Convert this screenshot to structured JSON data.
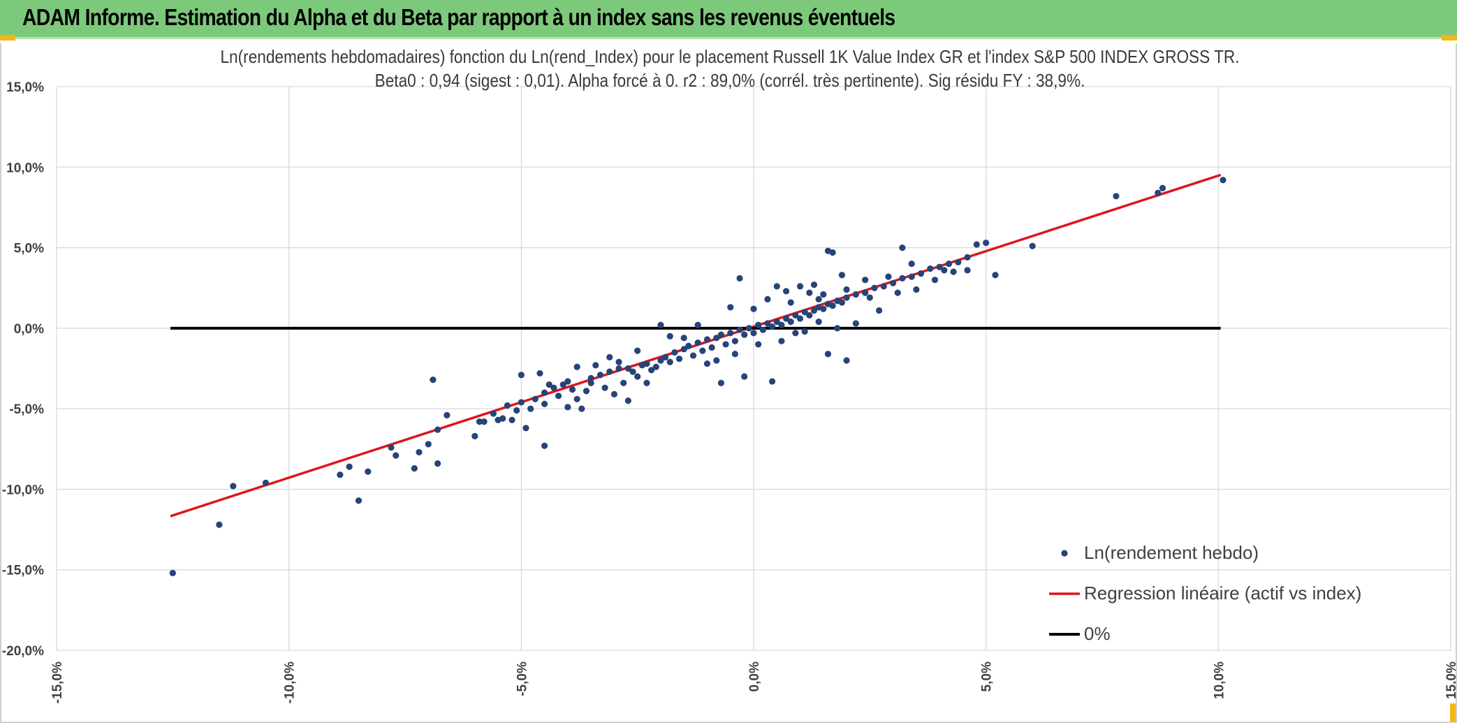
{
  "header": {
    "title": "ADAM Informe. Estimation du Alpha et du Beta par rapport à un index sans les revenus éventuels"
  },
  "colors": {
    "header_bg": "#7dc97c",
    "marker": "#f2b619",
    "points": "#264478",
    "regression": "#e0141b",
    "zero_line": "#000000",
    "grid": "#d9d9d9"
  },
  "chart_data": {
    "type": "scatter",
    "title": "Ln(rendements hebdomadaires) fonction du Ln(rend_Index) pour le placement Russell 1K Value Index GR et l'index S&P 500 INDEX GROSS TR.",
    "subtitle": "Beta0 : 0,94 (sigest : 0,01). Alpha forcé à 0. r2 : 89,0% (corrél. très pertinente). Sig résidu FY : 38,9%.",
    "xlabel": "",
    "ylabel": "",
    "xlim": [
      -0.15,
      0.15
    ],
    "ylim": [
      -0.2,
      0.15
    ],
    "x_ticks": [
      -0.15,
      -0.1,
      -0.05,
      0.0,
      0.05,
      0.1,
      0.15
    ],
    "x_tick_labels": [
      "-15,0%",
      "-10,0%",
      "-5,0%",
      "0,0%",
      "5,0%",
      "10,0%",
      "15,0%"
    ],
    "y_ticks": [
      0.15,
      0.1,
      0.05,
      0.0,
      -0.05,
      -0.1,
      -0.15,
      -0.2
    ],
    "y_tick_labels": [
      "15,0%",
      "10,0%",
      "5,0%",
      "0,0%",
      "-5,0%",
      "-10,0%",
      "-15,0%",
      "-20,0%"
    ],
    "grid": true,
    "legend_position": "bottom-right",
    "series": [
      {
        "name": "Ln(rendement hebdo)",
        "kind": "scatter",
        "color": "#264478",
        "points": [
          [
            -0.125,
            -0.152
          ],
          [
            -0.115,
            -0.122
          ],
          [
            -0.112,
            -0.098
          ],
          [
            -0.105,
            -0.096
          ],
          [
            -0.089,
            -0.091
          ],
          [
            -0.087,
            -0.086
          ],
          [
            -0.085,
            -0.107
          ],
          [
            -0.083,
            -0.089
          ],
          [
            -0.078,
            -0.074
          ],
          [
            -0.077,
            -0.079
          ],
          [
            -0.073,
            -0.087
          ],
          [
            -0.072,
            -0.077
          ],
          [
            -0.07,
            -0.072
          ],
          [
            -0.069,
            -0.032
          ],
          [
            -0.068,
            -0.063
          ],
          [
            -0.068,
            -0.084
          ],
          [
            -0.066,
            -0.054
          ],
          [
            -0.06,
            -0.067
          ],
          [
            -0.059,
            -0.058
          ],
          [
            -0.058,
            -0.058
          ],
          [
            -0.056,
            -0.053
          ],
          [
            -0.055,
            -0.057
          ],
          [
            -0.054,
            -0.056
          ],
          [
            -0.053,
            -0.048
          ],
          [
            -0.052,
            -0.057
          ],
          [
            -0.051,
            -0.051
          ],
          [
            -0.05,
            -0.029
          ],
          [
            -0.05,
            -0.046
          ],
          [
            -0.049,
            -0.062
          ],
          [
            -0.048,
            -0.05
          ],
          [
            -0.047,
            -0.044
          ],
          [
            -0.046,
            -0.028
          ],
          [
            -0.045,
            -0.047
          ],
          [
            -0.045,
            -0.04
          ],
          [
            -0.044,
            -0.035
          ],
          [
            -0.045,
            -0.073
          ],
          [
            -0.043,
            -0.037
          ],
          [
            -0.042,
            -0.042
          ],
          [
            -0.041,
            -0.035
          ],
          [
            -0.04,
            -0.033
          ],
          [
            -0.039,
            -0.038
          ],
          [
            -0.038,
            -0.024
          ],
          [
            -0.037,
            -0.05
          ],
          [
            -0.036,
            -0.039
          ],
          [
            -0.035,
            -0.031
          ],
          [
            -0.034,
            -0.023
          ],
          [
            -0.033,
            -0.029
          ],
          [
            -0.032,
            -0.037
          ],
          [
            -0.031,
            -0.027
          ],
          [
            -0.03,
            -0.041
          ],
          [
            -0.029,
            -0.025
          ],
          [
            -0.028,
            -0.034
          ],
          [
            -0.027,
            -0.025
          ],
          [
            -0.026,
            -0.027
          ],
          [
            -0.025,
            -0.03
          ],
          [
            -0.024,
            -0.023
          ],
          [
            -0.023,
            -0.022
          ],
          [
            -0.022,
            -0.026
          ],
          [
            -0.021,
            -0.024
          ],
          [
            -0.02,
            -0.02
          ],
          [
            -0.019,
            -0.018
          ],
          [
            -0.018,
            -0.021
          ],
          [
            -0.017,
            -0.015
          ],
          [
            -0.016,
            -0.019
          ],
          [
            -0.015,
            -0.013
          ],
          [
            -0.014,
            -0.011
          ],
          [
            -0.013,
            -0.017
          ],
          [
            -0.012,
            -0.009
          ],
          [
            -0.011,
            -0.014
          ],
          [
            -0.01,
            -0.007
          ],
          [
            -0.009,
            -0.012
          ],
          [
            -0.008,
            -0.006
          ],
          [
            -0.007,
            -0.004
          ],
          [
            -0.006,
            -0.01
          ],
          [
            -0.005,
            -0.003
          ],
          [
            -0.004,
            -0.008
          ],
          [
            -0.003,
            -0.001
          ],
          [
            -0.002,
            -0.004
          ],
          [
            -0.001,
            0.0
          ],
          [
            0.0,
            -0.003
          ],
          [
            0.001,
            0.002
          ],
          [
            0.002,
            -0.001
          ],
          [
            0.003,
            0.003
          ],
          [
            0.004,
            0.001
          ],
          [
            0.005,
            0.004
          ],
          [
            0.006,
            0.002
          ],
          [
            0.007,
            0.006
          ],
          [
            0.008,
            0.004
          ],
          [
            0.009,
            0.008
          ],
          [
            0.01,
            0.006
          ],
          [
            0.011,
            0.01
          ],
          [
            0.012,
            0.008
          ],
          [
            0.013,
            0.011
          ],
          [
            0.014,
            0.013
          ],
          [
            0.015,
            0.012
          ],
          [
            0.016,
            0.015
          ],
          [
            0.017,
            0.014
          ],
          [
            0.018,
            0.017
          ],
          [
            0.019,
            0.016
          ],
          [
            0.02,
            0.019
          ],
          [
            0.022,
            0.021
          ],
          [
            0.024,
            0.022
          ],
          [
            0.026,
            0.025
          ],
          [
            0.028,
            0.026
          ],
          [
            0.03,
            0.028
          ],
          [
            0.032,
            0.031
          ],
          [
            0.034,
            0.032
          ],
          [
            0.036,
            0.034
          ],
          [
            0.038,
            0.037
          ],
          [
            0.04,
            0.038
          ],
          [
            0.042,
            0.04
          ],
          [
            0.044,
            0.041
          ],
          [
            0.046,
            0.044
          ],
          [
            0.048,
            0.052
          ],
          [
            0.05,
            0.053
          ],
          [
            0.052,
            0.033
          ],
          [
            0.06,
            0.051
          ],
          [
            0.078,
            0.082
          ],
          [
            0.087,
            0.084
          ],
          [
            0.088,
            0.087
          ],
          [
            0.101,
            0.092
          ],
          [
            0.016,
            0.048
          ],
          [
            0.017,
            0.047
          ],
          [
            0.032,
            0.05
          ],
          [
            0.02,
            -0.02
          ],
          [
            0.016,
            -0.016
          ],
          [
            0.004,
            -0.033
          ],
          [
            -0.003,
            0.031
          ],
          [
            -0.007,
            -0.034
          ],
          [
            -0.002,
            -0.03
          ],
          [
            0.01,
            0.026
          ],
          [
            0.005,
            0.026
          ],
          [
            -0.02,
            0.002
          ],
          [
            -0.018,
            -0.005
          ],
          [
            -0.027,
            -0.045
          ],
          [
            -0.031,
            -0.018
          ],
          [
            -0.023,
            -0.034
          ],
          [
            0.02,
            0.024
          ],
          [
            0.025,
            0.019
          ],
          [
            0.031,
            0.022
          ],
          [
            0.039,
            0.03
          ],
          [
            0.041,
            0.036
          ],
          [
            0.014,
            0.004
          ],
          [
            0.009,
            -0.003
          ],
          [
            0.0,
            0.012
          ],
          [
            -0.005,
            0.013
          ],
          [
            0.003,
            0.018
          ],
          [
            0.007,
            0.023
          ],
          [
            0.012,
            0.022
          ],
          [
            0.014,
            0.018
          ],
          [
            -0.012,
            0.002
          ],
          [
            -0.015,
            -0.006
          ],
          [
            0.018,
            0.0
          ],
          [
            0.022,
            0.003
          ],
          [
            0.027,
            0.011
          ],
          [
            0.029,
            0.032
          ],
          [
            0.034,
            0.04
          ],
          [
            0.035,
            0.024
          ],
          [
            0.043,
            0.035
          ],
          [
            0.046,
            0.036
          ],
          [
            -0.008,
            -0.02
          ],
          [
            -0.004,
            -0.016
          ],
          [
            -0.01,
            -0.022
          ],
          [
            0.001,
            -0.01
          ],
          [
            0.006,
            -0.008
          ],
          [
            0.011,
            -0.002
          ],
          [
            -0.025,
            -0.014
          ],
          [
            -0.029,
            -0.021
          ],
          [
            -0.035,
            -0.034
          ],
          [
            -0.038,
            -0.044
          ],
          [
            -0.04,
            -0.049
          ],
          [
            0.024,
            0.03
          ],
          [
            0.019,
            0.033
          ],
          [
            0.015,
            0.021
          ],
          [
            0.013,
            0.027
          ],
          [
            0.008,
            0.016
          ]
        ]
      },
      {
        "name": "Regression linéaire (actif vs index)",
        "kind": "line",
        "color": "#e0141b",
        "x": [
          -0.1255,
          0.1005
        ],
        "y": [
          -0.1167,
          0.0952
        ]
      },
      {
        "name": "0%",
        "kind": "line",
        "color": "#000000",
        "x": [
          -0.1255,
          0.1005
        ],
        "y": [
          0.0,
          0.0
        ]
      }
    ]
  }
}
